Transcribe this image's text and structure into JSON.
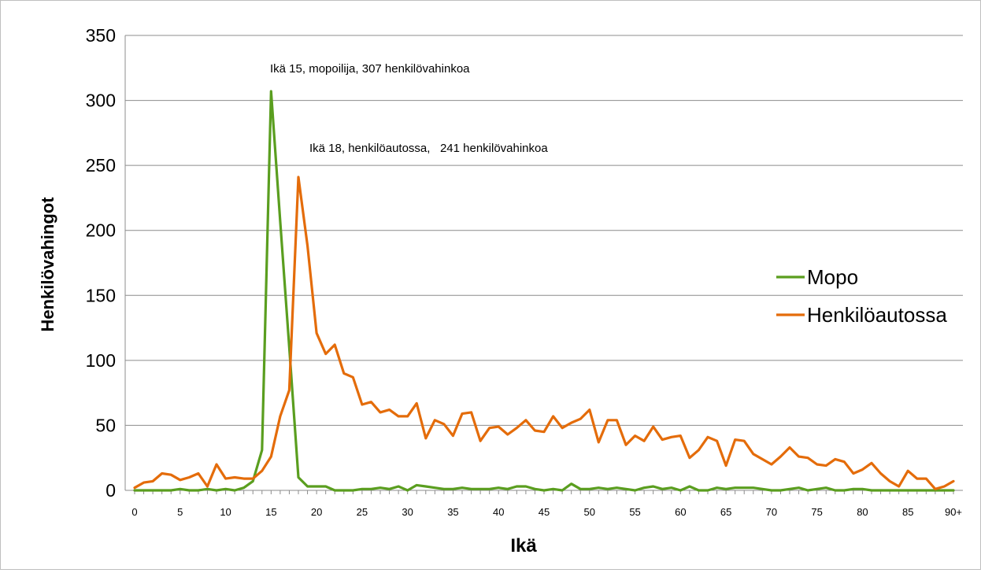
{
  "chart_data": {
    "type": "line",
    "xlabel": "Ikä",
    "ylabel": "Henkilövahingot",
    "ylim": [
      0,
      350
    ],
    "yticks": [
      0,
      50,
      100,
      150,
      200,
      250,
      300,
      350
    ],
    "x": [
      0,
      1,
      2,
      3,
      4,
      5,
      6,
      7,
      8,
      9,
      10,
      11,
      12,
      13,
      14,
      15,
      16,
      17,
      18,
      19,
      20,
      21,
      22,
      23,
      24,
      25,
      26,
      27,
      28,
      29,
      30,
      31,
      32,
      33,
      34,
      35,
      36,
      37,
      38,
      39,
      40,
      41,
      42,
      43,
      44,
      45,
      46,
      47,
      48,
      49,
      50,
      51,
      52,
      53,
      54,
      55,
      56,
      57,
      58,
      59,
      60,
      61,
      62,
      63,
      64,
      65,
      66,
      67,
      68,
      69,
      70,
      71,
      72,
      73,
      74,
      75,
      76,
      77,
      78,
      79,
      80,
      81,
      82,
      83,
      84,
      85,
      86,
      87,
      88,
      89,
      90
    ],
    "xtick_labels": [
      "0",
      "5",
      "10",
      "15",
      "20",
      "25",
      "30",
      "35",
      "40",
      "45",
      "50",
      "55",
      "60",
      "65",
      "70",
      "75",
      "80",
      "85",
      "90+"
    ],
    "xtick_positions": [
      0,
      5,
      10,
      15,
      20,
      25,
      30,
      35,
      40,
      45,
      50,
      55,
      60,
      65,
      70,
      75,
      80,
      85,
      90
    ],
    "grid": "horizontal",
    "legend_position": "right",
    "series": [
      {
        "name": "Mopo",
        "color": "#5a9e1f",
        "values": [
          0,
          0,
          0,
          0,
          0,
          1,
          0,
          0,
          1,
          0,
          1,
          0,
          2,
          7,
          31,
          307,
          207,
          110,
          10,
          3,
          3,
          3,
          0,
          0,
          0,
          1,
          1,
          2,
          1,
          3,
          0,
          4,
          3,
          2,
          1,
          1,
          2,
          1,
          1,
          1,
          2,
          1,
          3,
          3,
          1,
          0,
          1,
          0,
          5,
          1,
          1,
          2,
          1,
          2,
          1,
          0,
          2,
          3,
          1,
          2,
          0,
          3,
          0,
          0,
          2,
          1,
          2,
          2,
          2,
          1,
          0,
          0,
          1,
          2,
          0,
          1,
          2,
          0,
          0,
          1,
          1,
          0,
          0,
          0,
          0,
          0,
          0,
          0,
          0,
          0,
          0
        ]
      },
      {
        "name": "Henkilöautossa",
        "color": "#e46c0a",
        "values": [
          2,
          6,
          7,
          13,
          12,
          8,
          10,
          13,
          3,
          20,
          9,
          10,
          9,
          9,
          15,
          26,
          57,
          77,
          241,
          188,
          121,
          105,
          112,
          90,
          87,
          66,
          68,
          60,
          62,
          57,
          57,
          67,
          40,
          54,
          51,
          42,
          59,
          60,
          38,
          48,
          49,
          43,
          48,
          54,
          46,
          45,
          57,
          48,
          52,
          55,
          62,
          37,
          54,
          54,
          35,
          42,
          38,
          49,
          39,
          41,
          42,
          25,
          31,
          41,
          38,
          19,
          39,
          38,
          28,
          24,
          20,
          26,
          33,
          26,
          25,
          20,
          19,
          24,
          22,
          13,
          16,
          21,
          13,
          7,
          3,
          15,
          9,
          9,
          1,
          3,
          7
        ]
      }
    ],
    "annotations": [
      {
        "text": "Ikä 15, mopoilija, 307 henkilövahinkoa",
        "x": 15,
        "y": 307,
        "series": "Mopo"
      },
      {
        "text": "Ikä 18, henkilöautossa,   241 henkilövahinkoa",
        "x": 18,
        "y": 241,
        "series": "Henkilöautossa"
      }
    ]
  }
}
